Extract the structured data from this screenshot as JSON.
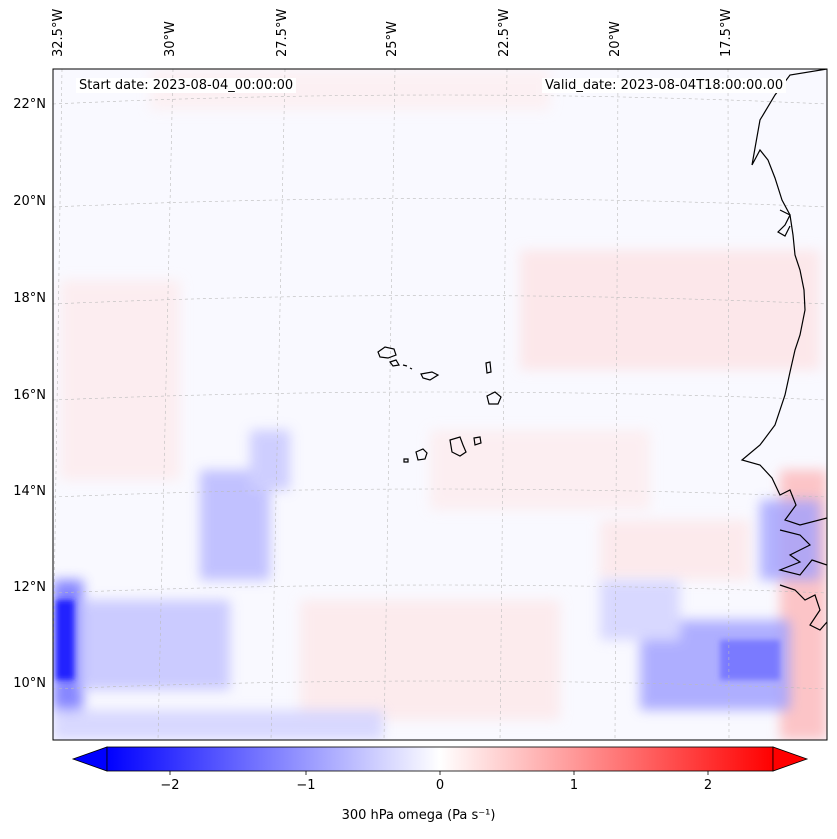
{
  "map": {
    "start_date": "Start date: 2023-08-04_00:00:00",
    "valid_date": "Valid_date: 2023-08-04T18:00:00.00",
    "lon_labels": [
      "32.5°W",
      "30°W",
      "27.5°W",
      "25°W",
      "22.5°W",
      "20°W",
      "17.5°W"
    ],
    "lat_labels": [
      "22°N",
      "20°N",
      "18°N",
      "16°N",
      "14°N",
      "12°N",
      "10°N"
    ],
    "colors": {
      "negative": "#0000ff",
      "positive": "#ff0000",
      "neutral": "#ffffff",
      "coast": "#000000"
    }
  },
  "colorbar": {
    "ticks": [
      "−2",
      "−1",
      "0",
      "1",
      "2"
    ],
    "label": "300 hPa omega (Pa s⁻¹)",
    "range": [
      -2.7,
      2.7
    ]
  }
}
